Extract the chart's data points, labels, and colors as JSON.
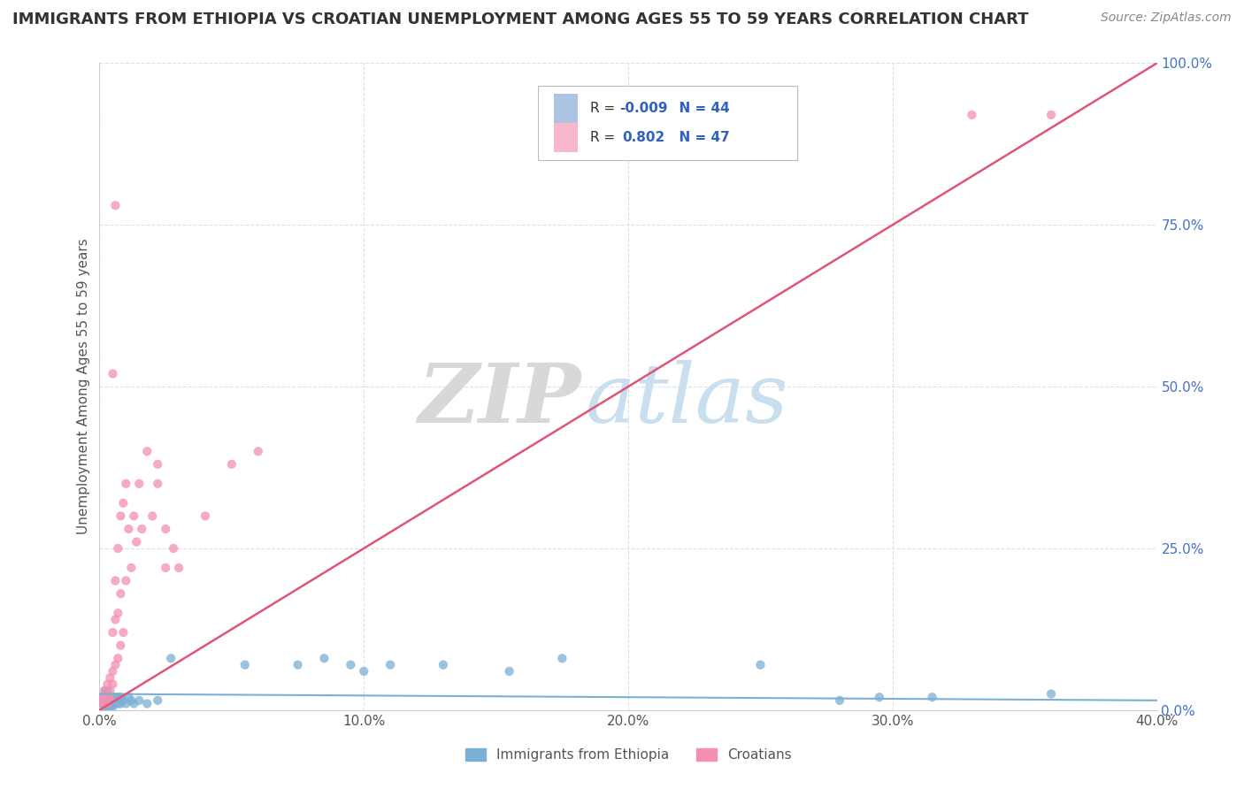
{
  "title": "IMMIGRANTS FROM ETHIOPIA VS CROATIAN UNEMPLOYMENT AMONG AGES 55 TO 59 YEARS CORRELATION CHART",
  "source": "Source: ZipAtlas.com",
  "ylabel": "Unemployment Among Ages 55 to 59 years",
  "xlim": [
    0.0,
    0.4
  ],
  "ylim": [
    0.0,
    1.0
  ],
  "xticks": [
    0.0,
    0.1,
    0.2,
    0.3,
    0.4
  ],
  "xtick_labels": [
    "0.0%",
    "10.0%",
    "20.0%",
    "30.0%",
    "40.0%"
  ],
  "yticks": [
    0.0,
    0.25,
    0.5,
    0.75,
    1.0
  ],
  "ytick_labels_left": [
    "",
    "",
    "",
    "",
    ""
  ],
  "ytick_labels_right": [
    "0.0%",
    "25.0%",
    "50.0%",
    "75.0%",
    "100.0%"
  ],
  "legend_entry1": {
    "label": "Immigrants from Ethiopia",
    "R": "-0.009",
    "N": "44",
    "color": "#aac4e2"
  },
  "legend_entry2": {
    "label": "Croatians",
    "R": "0.802",
    "N": "47",
    "color": "#f7b8cc"
  },
  "watermark_zip": "ZIP",
  "watermark_atlas": "atlas",
  "ethiopia_scatter_x": [
    0.001,
    0.001,
    0.002,
    0.002,
    0.002,
    0.003,
    0.003,
    0.003,
    0.003,
    0.004,
    0.004,
    0.004,
    0.005,
    0.005,
    0.005,
    0.006,
    0.006,
    0.007,
    0.007,
    0.008,
    0.008,
    0.009,
    0.01,
    0.011,
    0.012,
    0.013,
    0.015,
    0.018,
    0.022,
    0.027,
    0.055,
    0.075,
    0.085,
    0.095,
    0.1,
    0.11,
    0.13,
    0.155,
    0.175,
    0.25,
    0.28,
    0.295,
    0.315,
    0.36
  ],
  "ethiopia_scatter_y": [
    0.01,
    0.02,
    0.01,
    0.03,
    0.005,
    0.02,
    0.01,
    0.03,
    0.005,
    0.01,
    0.02,
    0.005,
    0.01,
    0.02,
    0.005,
    0.01,
    0.02,
    0.01,
    0.02,
    0.01,
    0.02,
    0.015,
    0.01,
    0.02,
    0.015,
    0.01,
    0.015,
    0.01,
    0.015,
    0.08,
    0.07,
    0.07,
    0.08,
    0.07,
    0.06,
    0.07,
    0.07,
    0.06,
    0.08,
    0.07,
    0.015,
    0.02,
    0.02,
    0.025
  ],
  "croatian_scatter_x": [
    0.001,
    0.001,
    0.002,
    0.002,
    0.003,
    0.003,
    0.003,
    0.004,
    0.004,
    0.004,
    0.005,
    0.005,
    0.005,
    0.006,
    0.006,
    0.006,
    0.007,
    0.007,
    0.007,
    0.008,
    0.008,
    0.008,
    0.009,
    0.009,
    0.01,
    0.01,
    0.011,
    0.012,
    0.013,
    0.014,
    0.015,
    0.016,
    0.018,
    0.02,
    0.022,
    0.025,
    0.025,
    0.028,
    0.03,
    0.04,
    0.05,
    0.06,
    0.022,
    0.005,
    0.006,
    0.36,
    0.33
  ],
  "croatian_scatter_y": [
    0.01,
    0.02,
    0.03,
    0.01,
    0.02,
    0.04,
    0.01,
    0.05,
    0.03,
    0.02,
    0.06,
    0.12,
    0.04,
    0.07,
    0.14,
    0.2,
    0.15,
    0.25,
    0.08,
    0.18,
    0.3,
    0.1,
    0.32,
    0.12,
    0.2,
    0.35,
    0.28,
    0.22,
    0.3,
    0.26,
    0.35,
    0.28,
    0.4,
    0.3,
    0.35,
    0.22,
    0.28,
    0.25,
    0.22,
    0.3,
    0.38,
    0.4,
    0.38,
    0.52,
    0.78,
    0.92,
    0.92
  ],
  "ethiopia_trend_x": [
    0.0,
    0.4
  ],
  "ethiopia_trend_y": [
    0.025,
    0.015
  ],
  "croatian_trend_x": [
    0.0,
    0.4
  ],
  "croatian_trend_y": [
    0.0,
    1.0
  ],
  "scatter_color_ethiopia": "#7bafd4",
  "scatter_color_croatian": "#f48fb1",
  "trend_color_ethiopia": "#7bafd4",
  "trend_color_croatian": "#e05575",
  "background_color": "#ffffff",
  "grid_color": "#e0e0e0",
  "title_fontsize": 13,
  "axis_label_fontsize": 11,
  "tick_fontsize": 11,
  "source_fontsize": 10,
  "right_ytick_color": "#4472c4"
}
